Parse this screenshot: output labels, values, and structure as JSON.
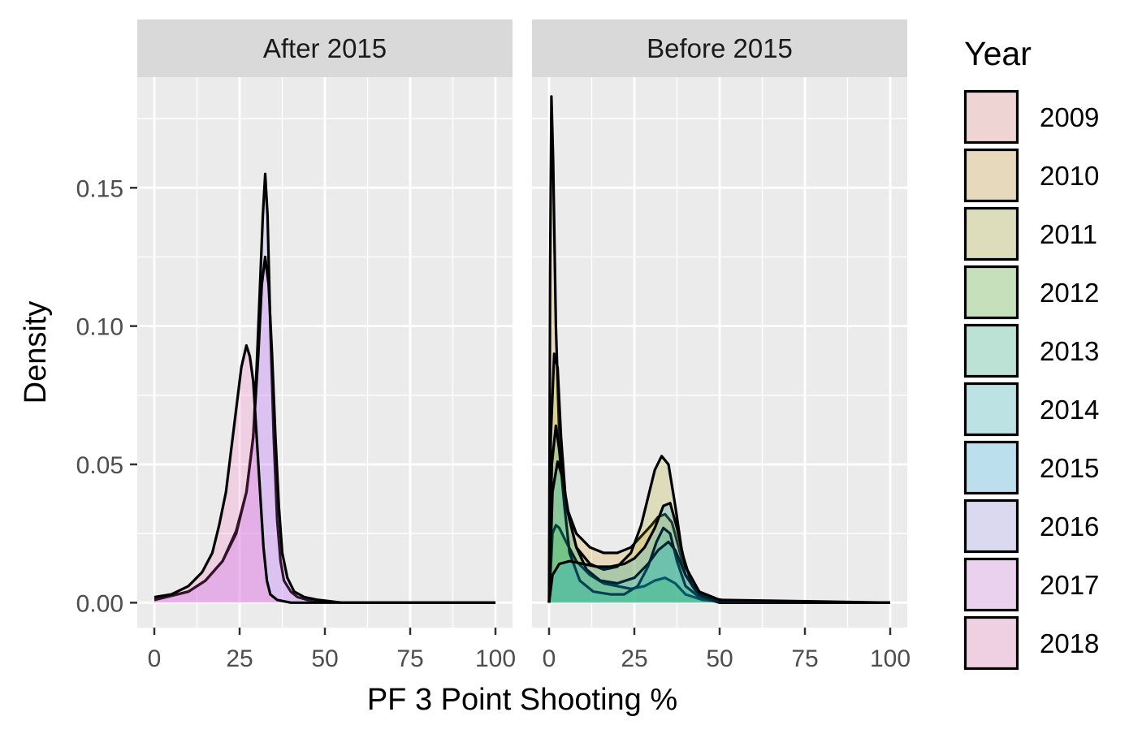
{
  "chart_data": {
    "type": "area",
    "chart_kind": "faceted density",
    "xlabel": "PF 3 Point Shooting %",
    "ylabel": "Density",
    "xlim": [
      -5,
      105
    ],
    "ylim": [
      -0.009,
      0.19
    ],
    "x_ticks": [
      0,
      25,
      50,
      75,
      100
    ],
    "y_ticks": [
      0.0,
      0.05,
      0.1,
      0.15
    ],
    "grid": true,
    "legend": {
      "title": "Year",
      "placement": "right",
      "entries": [
        {
          "label": "2009",
          "color": "#F8766D"
        },
        {
          "label": "2010",
          "color": "#D89000"
        },
        {
          "label": "2011",
          "color": "#A3A500"
        },
        {
          "label": "2012",
          "color": "#39B600"
        },
        {
          "label": "2013",
          "color": "#00BF7D"
        },
        {
          "label": "2014",
          "color": "#00BFC4"
        },
        {
          "label": "2015",
          "color": "#00B0F6"
        },
        {
          "label": "2016",
          "color": "#9590FF"
        },
        {
          "label": "2017",
          "color": "#E76BF3"
        },
        {
          "label": "2018",
          "color": "#FF62BC"
        }
      ]
    },
    "facets": [
      {
        "label": "After 2015",
        "series": [
          {
            "name": "2016",
            "points": [
              [
                0,
                0.001
              ],
              [
                10,
                0.004
              ],
              [
                15,
                0.008
              ],
              [
                20,
                0.015
              ],
              [
                24,
                0.026
              ],
              [
                27,
                0.04
              ],
              [
                29,
                0.06
              ],
              [
                30,
                0.085
              ],
              [
                31,
                0.115
              ],
              [
                31.8,
                0.14
              ],
              [
                32.5,
                0.155
              ],
              [
                33.2,
                0.14
              ],
              [
                34,
                0.1
              ],
              [
                35,
                0.06
              ],
              [
                36,
                0.03
              ],
              [
                37,
                0.015
              ],
              [
                38,
                0.008
              ],
              [
                40,
                0.004
              ],
              [
                42,
                0.002
              ],
              [
                45,
                0.001
              ],
              [
                55,
                0
              ],
              [
                100,
                0
              ]
            ]
          },
          {
            "name": "2017",
            "points": [
              [
                0,
                0.001
              ],
              [
                10,
                0.004
              ],
              [
                15,
                0.008
              ],
              [
                20,
                0.015
              ],
              [
                24,
                0.025
              ],
              [
                27,
                0.04
              ],
              [
                29,
                0.06
              ],
              [
                30.5,
                0.09
              ],
              [
                31.5,
                0.115
              ],
              [
                32.5,
                0.125
              ],
              [
                33.5,
                0.115
              ],
              [
                34.5,
                0.09
              ],
              [
                35.5,
                0.06
              ],
              [
                36.5,
                0.035
              ],
              [
                37.5,
                0.018
              ],
              [
                39,
                0.009
              ],
              [
                41,
                0.004
              ],
              [
                44,
                0.002
              ],
              [
                48,
                0.001
              ],
              [
                55,
                0
              ],
              [
                100,
                0
              ]
            ]
          },
          {
            "name": "2018",
            "points": [
              [
                0,
                0.002
              ],
              [
                5,
                0.003
              ],
              [
                10,
                0.006
              ],
              [
                14,
                0.011
              ],
              [
                17,
                0.018
              ],
              [
                19,
                0.028
              ],
              [
                21,
                0.04
              ],
              [
                22.5,
                0.055
              ],
              [
                24,
                0.07
              ],
              [
                25.5,
                0.085
              ],
              [
                27,
                0.093
              ],
              [
                28,
                0.089
              ],
              [
                29,
                0.08
              ],
              [
                30,
                0.06
              ],
              [
                31,
                0.04
              ],
              [
                32,
                0.02
              ],
              [
                33,
                0.008
              ],
              [
                34,
                0.003
              ],
              [
                36,
                0.001
              ],
              [
                40,
                0
              ],
              [
                100,
                0
              ]
            ]
          }
        ]
      },
      {
        "label": "Before 2015",
        "series": [
          {
            "name": "2010",
            "points": [
              [
                0,
                0
              ],
              [
                0.3,
                0.12
              ],
              [
                0.7,
                0.183
              ],
              [
                1.2,
                0.16
              ],
              [
                2,
                0.1
              ],
              [
                3,
                0.06
              ],
              [
                5,
                0.035
              ],
              [
                8,
                0.025
              ],
              [
                12,
                0.02
              ],
              [
                16,
                0.018
              ],
              [
                20,
                0.018
              ],
              [
                24,
                0.02
              ],
              [
                27,
                0.024
              ],
              [
                30,
                0.028
              ],
              [
                32,
                0.031
              ],
              [
                34,
                0.032
              ],
              [
                36,
                0.029
              ],
              [
                38,
                0.02
              ],
              [
                40,
                0.01
              ],
              [
                43,
                0.004
              ],
              [
                48,
                0.001
              ],
              [
                55,
                0
              ],
              [
                100,
                0
              ]
            ]
          },
          {
            "name": "2011",
            "points": [
              [
                0,
                0
              ],
              [
                0.5,
                0.06
              ],
              [
                1.5,
                0.09
              ],
              [
                2.5,
                0.085
              ],
              [
                3.5,
                0.06
              ],
              [
                5,
                0.035
              ],
              [
                8,
                0.02
              ],
              [
                12,
                0.014
              ],
              [
                16,
                0.012
              ],
              [
                20,
                0.013
              ],
              [
                24,
                0.018
              ],
              [
                27,
                0.028
              ],
              [
                29,
                0.038
              ],
              [
                31,
                0.048
              ],
              [
                33,
                0.053
              ],
              [
                35,
                0.05
              ],
              [
                37,
                0.035
              ],
              [
                39,
                0.018
              ],
              [
                42,
                0.006
              ],
              [
                46,
                0.002
              ],
              [
                55,
                0
              ],
              [
                100,
                0
              ]
            ]
          },
          {
            "name": "2012",
            "points": [
              [
                0,
                0
              ],
              [
                1,
                0.025
              ],
              [
                2,
                0.028
              ],
              [
                3,
                0.027
              ],
              [
                5,
                0.022
              ],
              [
                8,
                0.015
              ],
              [
                12,
                0.01
              ],
              [
                16,
                0.007
              ],
              [
                20,
                0.006
              ],
              [
                24,
                0.005
              ],
              [
                28,
                0.006
              ],
              [
                31,
                0.008
              ],
              [
                34,
                0.009
              ],
              [
                37,
                0.007
              ],
              [
                40,
                0.003
              ],
              [
                45,
                0.001
              ],
              [
                55,
                0
              ],
              [
                100,
                0
              ]
            ]
          },
          {
            "name": "2013",
            "points": [
              [
                0,
                0
              ],
              [
                0.8,
                0.05
              ],
              [
                2,
                0.064
              ],
              [
                3,
                0.055
              ],
              [
                4.5,
                0.035
              ],
              [
                6,
                0.018
              ],
              [
                9,
                0.008
              ],
              [
                13,
                0.004
              ],
              [
                18,
                0.003
              ],
              [
                22,
                0.003
              ],
              [
                26,
                0.006
              ],
              [
                29,
                0.013
              ],
              [
                31.5,
                0.022
              ],
              [
                33.5,
                0.027
              ],
              [
                35.5,
                0.025
              ],
              [
                37.5,
                0.015
              ],
              [
                40,
                0.006
              ],
              [
                44,
                0.002
              ],
              [
                50,
                0
              ],
              [
                100,
                0
              ]
            ]
          },
          {
            "name": "2014",
            "points": [
              [
                0,
                0
              ],
              [
                1,
                0.04
              ],
              [
                2.5,
                0.051
              ],
              [
                4,
                0.045
              ],
              [
                6,
                0.03
              ],
              [
                8,
                0.02
              ],
              [
                11,
                0.012
              ],
              [
                15,
                0.008
              ],
              [
                20,
                0.007
              ],
              [
                25,
                0.009
              ],
              [
                29,
                0.014
              ],
              [
                32,
                0.019
              ],
              [
                35,
                0.022
              ],
              [
                37,
                0.019
              ],
              [
                40,
                0.01
              ],
              [
                44,
                0.003
              ],
              [
                50,
                0
              ],
              [
                100,
                0
              ]
            ]
          },
          {
            "name": "2015",
            "points": [
              [
                0,
                0
              ],
              [
                1,
                0.01
              ],
              [
                3,
                0.014
              ],
              [
                6,
                0.015
              ],
              [
                10,
                0.014
              ],
              [
                14,
                0.013
              ],
              [
                18,
                0.013
              ],
              [
                22,
                0.014
              ],
              [
                25,
                0.016
              ],
              [
                28,
                0.02
              ],
              [
                31,
                0.027
              ],
              [
                33.5,
                0.035
              ],
              [
                35.5,
                0.036
              ],
              [
                37.5,
                0.027
              ],
              [
                40,
                0.013
              ],
              [
                44,
                0.004
              ],
              [
                50,
                0.001
              ],
              [
                100,
                0
              ]
            ]
          }
        ]
      }
    ]
  }
}
